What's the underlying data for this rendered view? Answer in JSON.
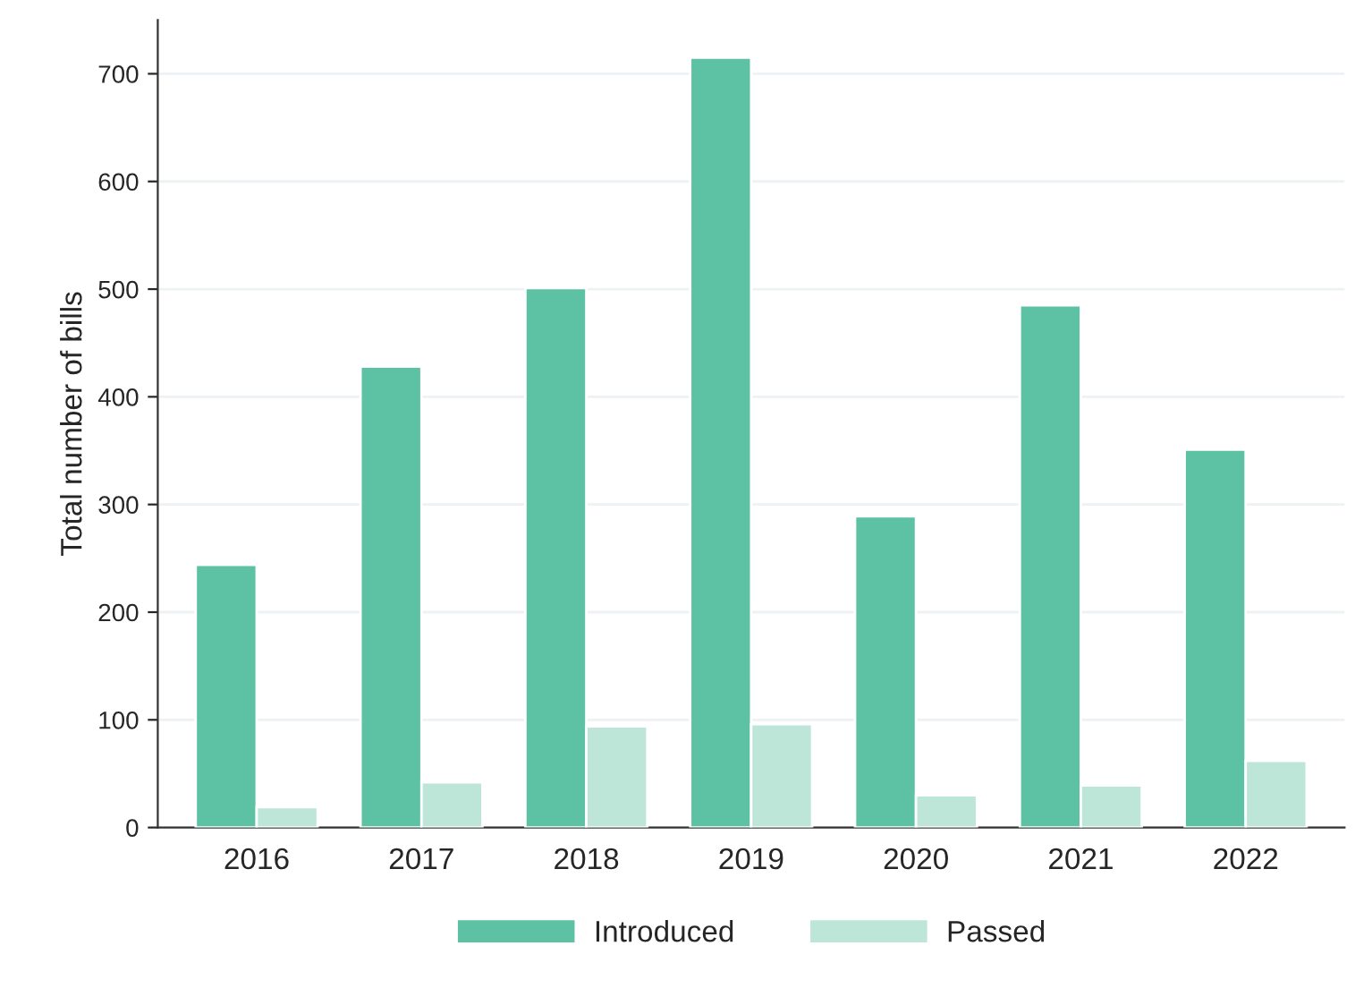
{
  "chart_data": {
    "type": "bar",
    "ylabel": "Total number of bills",
    "categories": [
      "2016",
      "2017",
      "2018",
      "2019",
      "2020",
      "2021",
      "2022"
    ],
    "series": [
      {
        "name": "Introduced",
        "color": "#5dc1a4",
        "values": [
          244,
          428,
          501,
          715,
          289,
          485,
          351
        ]
      },
      {
        "name": "Passed",
        "color": "#bde6d9",
        "values": [
          19,
          42,
          94,
          96,
          30,
          39,
          62
        ]
      }
    ],
    "ylim": [
      0,
      750
    ],
    "yticks": [
      0,
      100,
      200,
      300,
      400,
      500,
      600,
      700
    ],
    "grid": "y",
    "legend": "bottom"
  }
}
